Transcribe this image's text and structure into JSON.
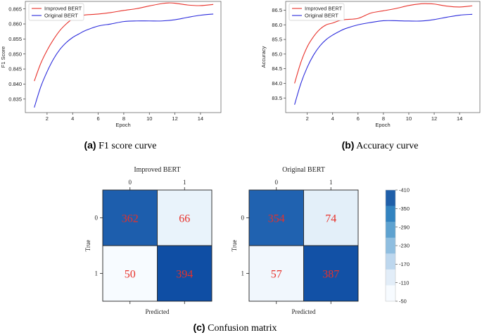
{
  "chart_data": [
    {
      "type": "line",
      "title": "",
      "xlabel": "Epoch",
      "ylabel": "F1 Score",
      "xlim": [
        0.3,
        15.6
      ],
      "ylim": [
        0.8305,
        0.8675
      ],
      "xticks": [
        2,
        4,
        6,
        8,
        10,
        12,
        14
      ],
      "yticks": [
        0.835,
        0.84,
        0.845,
        0.85,
        0.855,
        0.86,
        0.865
      ],
      "ytick_labels": [
        "0.835",
        "0.840",
        "0.845",
        "0.850",
        "0.855",
        "0.860",
        "0.865"
      ],
      "legend": "top-left",
      "series": [
        {
          "name": "Improved BERT",
          "color": "#e8312a",
          "x": [
            1,
            1.5,
            2,
            2.5,
            3,
            3.5,
            4,
            4.5,
            5,
            6,
            7,
            8,
            9,
            10,
            11,
            11.5,
            12,
            13,
            14,
            15
          ],
          "y": [
            0.841,
            0.8468,
            0.8512,
            0.8548,
            0.8578,
            0.86,
            0.8617,
            0.8626,
            0.863,
            0.8633,
            0.8638,
            0.8645,
            0.8651,
            0.866,
            0.8668,
            0.867,
            0.8669,
            0.8663,
            0.8661,
            0.8665
          ]
        },
        {
          "name": "Original BERT",
          "color": "#2b2bdc",
          "x": [
            1,
            1.5,
            2,
            2.5,
            3,
            3.5,
            4,
            4.5,
            5,
            6,
            7,
            8,
            9,
            10,
            11,
            12,
            13,
            14,
            15
          ],
          "y": [
            0.8322,
            0.839,
            0.8441,
            0.8483,
            0.8515,
            0.8538,
            0.8555,
            0.8567,
            0.8578,
            0.8593,
            0.86,
            0.8608,
            0.861,
            0.861,
            0.861,
            0.8614,
            0.8622,
            0.8629,
            0.8633
          ]
        }
      ]
    },
    {
      "type": "line",
      "title": "",
      "xlabel": "Epoch",
      "ylabel": "Accuracy",
      "xlim": [
        0.3,
        15.6
      ],
      "ylim": [
        83.0,
        86.8
      ],
      "xticks": [
        2,
        4,
        6,
        8,
        10,
        12,
        14
      ],
      "yticks": [
        83.5,
        84.0,
        84.5,
        85.0,
        85.5,
        86.0,
        86.5
      ],
      "ytick_labels": [
        "83.5",
        "84.0",
        "84.5",
        "85.0",
        "85.5",
        "86.0",
        "86.5"
      ],
      "legend": "top-left",
      "series": [
        {
          "name": "Improved BERT",
          "color": "#e8312a",
          "x": [
            1,
            1.5,
            2,
            2.5,
            3,
            3.5,
            4,
            4.5,
            5,
            6,
            7,
            8,
            9,
            10,
            11,
            11.5,
            12,
            13,
            14,
            15
          ],
          "y": [
            84.0,
            84.72,
            85.25,
            85.6,
            85.85,
            86.0,
            86.06,
            86.14,
            86.18,
            86.22,
            86.4,
            86.48,
            86.56,
            86.66,
            86.72,
            86.72,
            86.71,
            86.64,
            86.61,
            86.65
          ]
        },
        {
          "name": "Original BERT",
          "color": "#2b2bdc",
          "x": [
            1,
            1.5,
            2,
            2.5,
            3,
            3.5,
            4,
            4.5,
            5,
            6,
            7,
            8,
            9,
            10,
            11,
            12,
            13,
            14,
            15
          ],
          "y": [
            83.27,
            84.0,
            84.55,
            84.97,
            85.28,
            85.5,
            85.65,
            85.77,
            85.87,
            86.0,
            86.08,
            86.14,
            86.14,
            86.13,
            86.13,
            86.18,
            86.26,
            86.33,
            86.36
          ]
        }
      ]
    },
    {
      "type": "heatmap",
      "title": "Improved BERT",
      "xlabel": "Predicted",
      "ylabel": "True",
      "x_categories": [
        "0",
        "1"
      ],
      "y_categories": [
        "0",
        "1"
      ],
      "values": [
        [
          362,
          66
        ],
        [
          50,
          394
        ]
      ]
    },
    {
      "type": "heatmap",
      "title": "Original BERT",
      "xlabel": "Predicted",
      "ylabel": "True",
      "x_categories": [
        "0",
        "1"
      ],
      "y_categories": [
        "0",
        "1"
      ],
      "values": [
        [
          354,
          74
        ],
        [
          57,
          387
        ]
      ]
    }
  ],
  "colorbar": {
    "min": 50,
    "max": 410,
    "ticks": [
      "410",
      "350",
      "290",
      "230",
      "170",
      "110",
      "50"
    ],
    "colors": [
      "#1f5fa9",
      "#3283c0",
      "#5ea2d0",
      "#8fbee0",
      "#bdd7ee",
      "#e2edf8",
      "#f7fbff"
    ]
  },
  "cell_text_color": "#e8312a",
  "captions": {
    "a_label": "(a)",
    "a_text": " F1 score curve",
    "b_label": "(b)",
    "b_text": " Accuracy curve",
    "c_label": "(c)",
    "c_text": " Confusion matrix"
  }
}
